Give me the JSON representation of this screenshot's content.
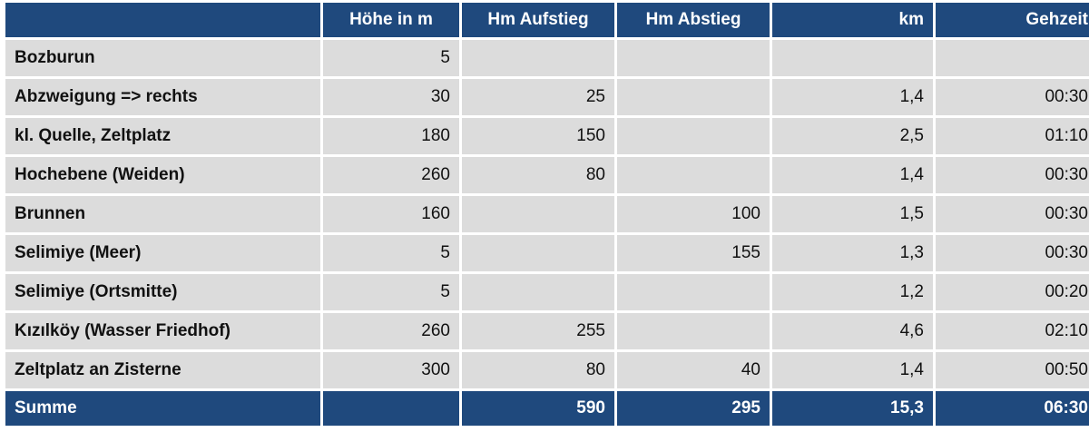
{
  "header": {
    "name": "",
    "hoehe": "Höhe in m",
    "aufstieg": "Hm Aufstieg",
    "abstieg": "Hm Abstieg",
    "km": "km",
    "gehzeit": "Gehzeit"
  },
  "rows": [
    {
      "name": "Bozburun",
      "hoehe": "5",
      "aufstieg": "",
      "abstieg": "",
      "km": "",
      "gehzeit": ""
    },
    {
      "name": "Abzweigung => rechts",
      "hoehe": "30",
      "aufstieg": "25",
      "abstieg": "",
      "km": "1,4",
      "gehzeit": "00:30"
    },
    {
      "name": "kl. Quelle, Zeltplatz",
      "hoehe": "180",
      "aufstieg": "150",
      "abstieg": "",
      "km": "2,5",
      "gehzeit": "01:10"
    },
    {
      "name": "Hochebene (Weiden)",
      "hoehe": "260",
      "aufstieg": "80",
      "abstieg": "",
      "km": "1,4",
      "gehzeit": "00:30"
    },
    {
      "name": "Brunnen",
      "hoehe": "160",
      "aufstieg": "",
      "abstieg": "100",
      "km": "1,5",
      "gehzeit": "00:30"
    },
    {
      "name": "Selimiye (Meer)",
      "hoehe": "5",
      "aufstieg": "",
      "abstieg": "155",
      "km": "1,3",
      "gehzeit": "00:30"
    },
    {
      "name": "Selimiye (Ortsmitte)",
      "hoehe": "5",
      "aufstieg": "",
      "abstieg": "",
      "km": "1,2",
      "gehzeit": "00:20"
    },
    {
      "name": "Kızılköy (Wasser Friedhof)",
      "hoehe": "260",
      "aufstieg": "255",
      "abstieg": "",
      "km": "4,6",
      "gehzeit": "02:10"
    },
    {
      "name": "Zeltplatz an Zisterne",
      "hoehe": "300",
      "aufstieg": "80",
      "abstieg": "40",
      "km": "1,4",
      "gehzeit": "00:50"
    }
  ],
  "footer": {
    "name": "Summe",
    "hoehe": "",
    "aufstieg": "590",
    "abstieg": "295",
    "km": "15,3",
    "gehzeit": "06:30"
  },
  "colors": {
    "header_bg": "#1f497d",
    "row_bg": "#dcdcdc"
  }
}
